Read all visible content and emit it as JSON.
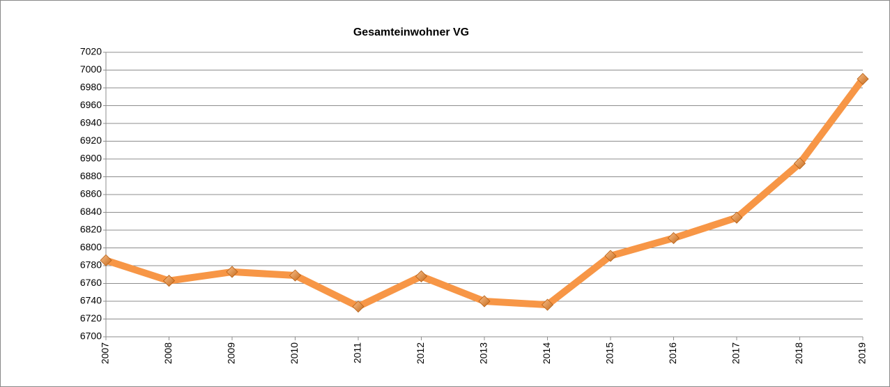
{
  "chart_data": {
    "type": "line",
    "title": "Gesamteinwohner VG",
    "categories": [
      "2007",
      "2008",
      "2009",
      "2010",
      "2011",
      "2012",
      "2013",
      "2014",
      "2015",
      "2016",
      "2017",
      "2018",
      "2019"
    ],
    "series": [
      {
        "color": "#f79646",
        "values": [
          6786,
          6763,
          6773,
          6769,
          6734,
          6768,
          6740,
          6736,
          6791,
          6811,
          6834,
          6895,
          6990
        ]
      }
    ],
    "ylim": [
      6700,
      7020
    ],
    "yticks": [
      6700,
      6720,
      6740,
      6760,
      6780,
      6800,
      6820,
      6840,
      6860,
      6880,
      6900,
      6920,
      6940,
      6960,
      6980,
      7000,
      7020
    ],
    "grid": true
  }
}
